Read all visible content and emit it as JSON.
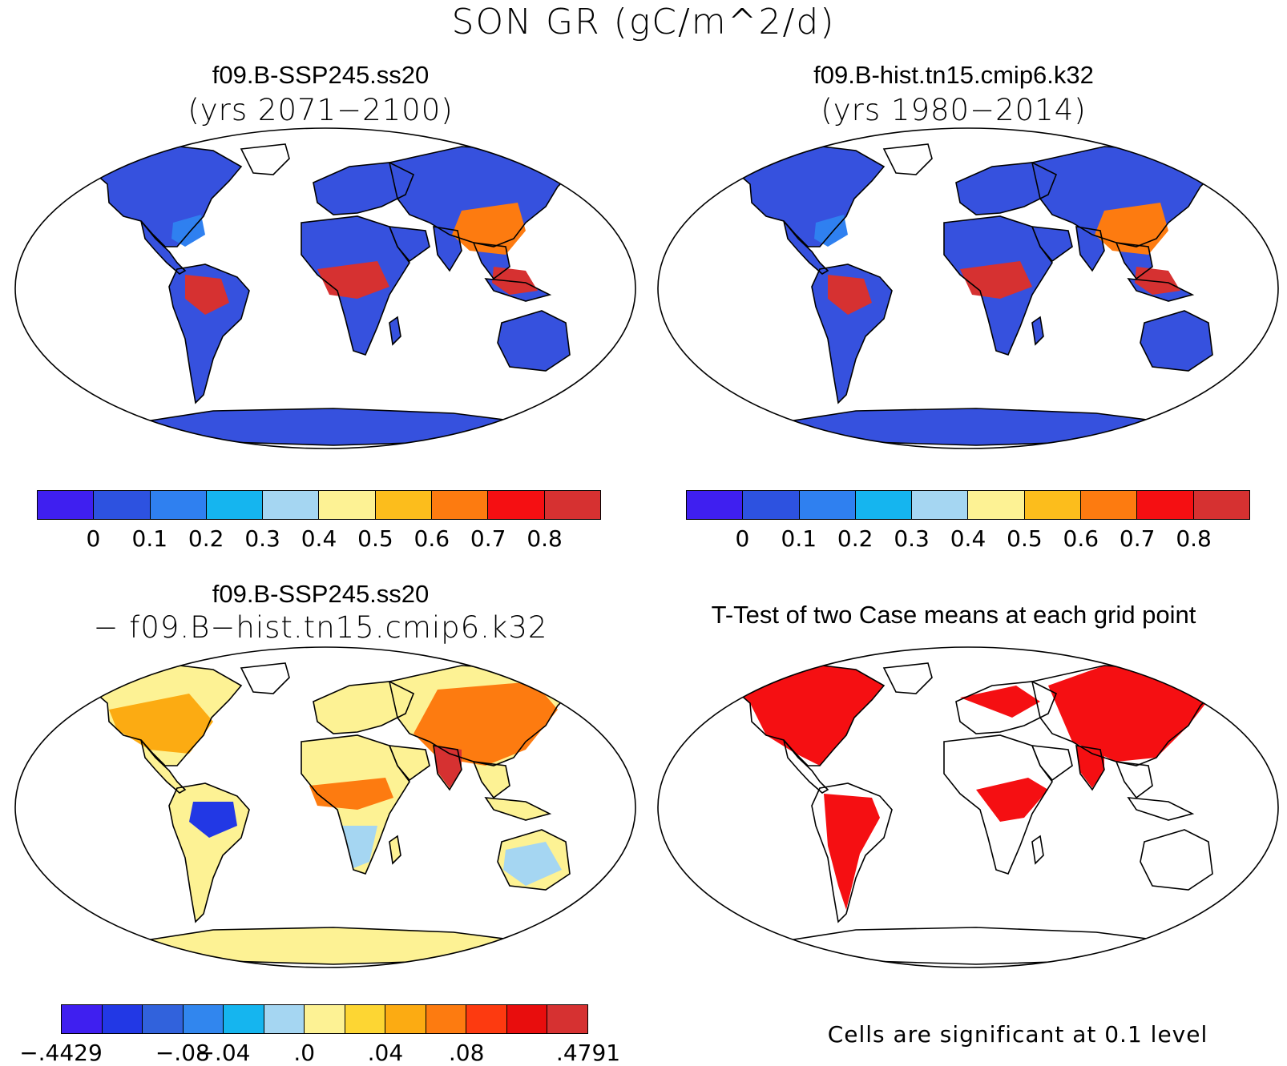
{
  "title": "SON GR (gC/m^2/d)",
  "panels": {
    "top_left": {
      "title": "f09.B-SSP245.ss20",
      "subtitle": "(yrs 2071−2100)"
    },
    "top_right": {
      "title": "f09.B-hist.tn15.cmip6.k32",
      "subtitle": "(yrs 1980−2014)"
    },
    "bottom_left": {
      "title": "f09.B-SSP245.ss20",
      "subtitle": "− f09.B−hist.tn15.cmip6.k32"
    },
    "bottom_right": {
      "title": "T-Test of two Case means at each grid point",
      "note": "Cells are significant at 0.1 level"
    }
  },
  "colorbars": {
    "abs": {
      "colors": [
        "#3f1ff0",
        "#2d52e0",
        "#2f80f0",
        "#15b5ef",
        "#a5d6f2",
        "#fdf294",
        "#fcbd1c",
        "#fd7b10",
        "#f50f12",
        "#d63131"
      ],
      "labels": [
        "0",
        "0.1",
        "0.2",
        "0.3",
        "0.4",
        "0.5",
        "0.6",
        "0.7",
        "0.8"
      ]
    },
    "diff": {
      "colors": [
        "#3f1ff0",
        "#2238e5",
        "#3162dc",
        "#3186ee",
        "#15b5ef",
        "#a5d6f2",
        "#fdf294",
        "#fdd633",
        "#fcab12",
        "#fd7b10",
        "#fd3a10",
        "#e80d0d",
        "#d63131"
      ],
      "labels": [
        ".4429",
        "−.08",
        "−.04",
        ".0",
        ".04",
        ".08",
        ".4791"
      ],
      "first_label_prefix": "−"
    }
  },
  "map_colors": {
    "ocean": "#ffffff",
    "land_low": "#3651de",
    "land_mid": "#2f80f0",
    "tropics": "#d63131",
    "warm": "#fd7b10",
    "yellow": "#fdf294",
    "sig": "#f50f12"
  }
}
